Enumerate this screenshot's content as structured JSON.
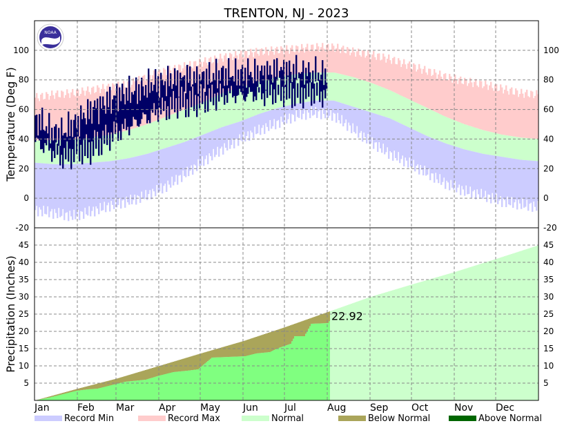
{
  "chart_data": {
    "title": "TRENTON, NJ - 2023",
    "temperature": {
      "type": "bar",
      "ylabel": "Temperature (Deg F)",
      "ylim": [
        -20,
        120
      ],
      "yticks": [
        -20,
        0,
        20,
        40,
        60,
        80,
        100
      ],
      "grid": true,
      "normal_high": [
        39,
        39,
        40,
        41,
        43,
        46,
        50,
        55,
        60,
        65,
        71,
        75,
        79,
        82,
        84,
        85,
        85,
        82,
        78,
        73,
        67,
        61,
        55,
        50,
        46,
        43,
        41,
        40
      ],
      "normal_low": [
        24,
        23,
        23,
        24,
        25,
        27,
        30,
        34,
        38,
        43,
        48,
        52,
        57,
        61,
        64,
        66,
        66,
        62,
        58,
        54,
        48,
        42,
        37,
        33,
        30,
        28,
        26,
        25
      ],
      "record_max": [
        68,
        70,
        71,
        73,
        75,
        77,
        82,
        86,
        89,
        92,
        95,
        97,
        99,
        100,
        101,
        102,
        102,
        99,
        97,
        94,
        90,
        86,
        82,
        79,
        77,
        74,
        71,
        70
      ],
      "record_min": [
        -8,
        -10,
        -12,
        -9,
        -5,
        -2,
        2,
        8,
        16,
        25,
        33,
        40,
        46,
        51,
        56,
        58,
        56,
        47,
        38,
        30,
        24,
        17,
        10,
        5,
        2,
        -2,
        -4,
        -6
      ],
      "observed_low": [
        38,
        36,
        35,
        32,
        30,
        28,
        29,
        30,
        34,
        32,
        33,
        36,
        38,
        40,
        42,
        45,
        46,
        48,
        50,
        52,
        54,
        55,
        58,
        60,
        60,
        62,
        64,
        65,
        64,
        65,
        66,
        67,
        67,
        68,
        69,
        70,
        70,
        70,
        69,
        70,
        70,
        71,
        70,
        71,
        72,
        72,
        72,
        71,
        71,
        71,
        72,
        72,
        71,
        70,
        70
      ],
      "observed_high": [
        52,
        52,
        48,
        45,
        44,
        44,
        47,
        50,
        52,
        56,
        58,
        62,
        62,
        65,
        66,
        70,
        70,
        71,
        72,
        73,
        74,
        76,
        78,
        78,
        78,
        80,
        80,
        80,
        82,
        81,
        80,
        82,
        82,
        83,
        84,
        84,
        84,
        83,
        84,
        85,
        84,
        84,
        85,
        85,
        86,
        86,
        87,
        86,
        86,
        85,
        84,
        84,
        84,
        84,
        83
      ],
      "observed_last_day": "Aug"
    },
    "precipitation": {
      "type": "area",
      "ylabel": "Precipitation (Inches)",
      "ylim": [
        0,
        50
      ],
      "yticks": [
        5,
        10,
        15,
        20,
        25,
        30,
        35,
        40,
        45
      ],
      "grid": true,
      "normal_cumulative": [
        [
          0,
          0
        ],
        [
          31,
          3.4
        ],
        [
          59,
          6.3
        ],
        [
          90,
          10.0
        ],
        [
          120,
          13.6
        ],
        [
          151,
          17.2
        ],
        [
          181,
          21.2
        ],
        [
          212,
          25.6
        ],
        [
          243,
          30.0
        ],
        [
          273,
          33.6
        ],
        [
          304,
          37.2
        ],
        [
          334,
          41.0
        ],
        [
          365,
          45.0
        ]
      ],
      "observed_cumulative": [
        [
          0,
          0
        ],
        [
          10,
          0.8
        ],
        [
          20,
          1.8
        ],
        [
          30,
          2.8
        ],
        [
          38,
          3.2
        ],
        [
          45,
          3.4
        ],
        [
          55,
          4.4
        ],
        [
          65,
          5.4
        ],
        [
          80,
          6.0
        ],
        [
          90,
          7.2
        ],
        [
          100,
          8.2
        ],
        [
          110,
          8.6
        ],
        [
          118,
          9.0
        ],
        [
          128,
          12.4
        ],
        [
          140,
          12.6
        ],
        [
          152,
          12.8
        ],
        [
          160,
          13.6
        ],
        [
          170,
          14.0
        ],
        [
          175,
          15.0
        ],
        [
          185,
          16.4
        ],
        [
          188,
          18.6
        ],
        [
          195,
          18.6
        ],
        [
          200,
          22.2
        ],
        [
          212,
          22.4
        ],
        [
          213,
          22.92
        ]
      ],
      "annotation": "22.92",
      "months": [
        "Jan",
        "Feb",
        "Mar",
        "Apr",
        "May",
        "Jun",
        "Jul",
        "Aug",
        "Sep",
        "Oct",
        "Nov",
        "Dec"
      ]
    },
    "legend": [
      {
        "label": "Record Min",
        "color": "#ccccff"
      },
      {
        "label": "Record Max",
        "color": "#ffcccc"
      },
      {
        "label": "Normal",
        "color": "#ccffcc"
      },
      {
        "label": "Below Normal",
        "color": "#aaa55a"
      },
      {
        "label": "Above Normal",
        "color": "#006600"
      }
    ],
    "colors": {
      "observed_temp": "#000066",
      "observed_precip": "#80ff80",
      "normal_precip_future": "#ccffcc"
    }
  }
}
